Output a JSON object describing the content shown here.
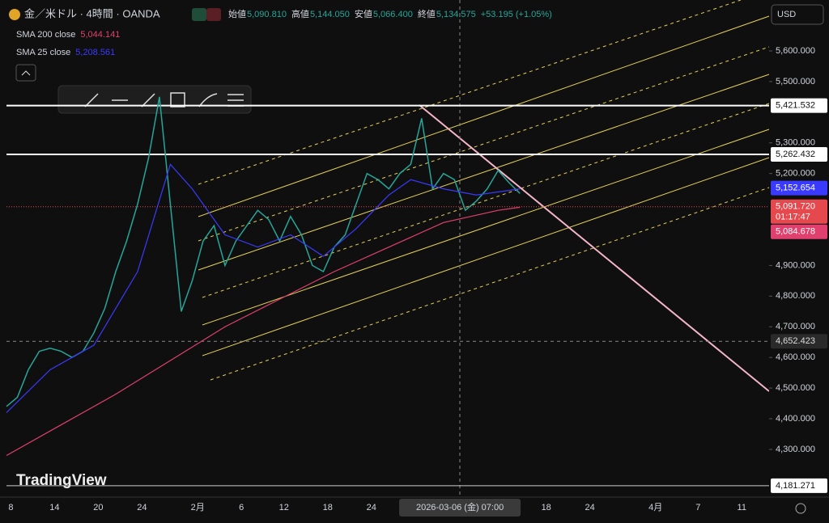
{
  "chart_data": {
    "type": "line",
    "title": "金／米ドル · 4時間 · OANDA",
    "legend": {
      "open_label": "始値",
      "open": "5,090.810",
      "high_label": "高値",
      "high": "5,144.050",
      "low_label": "安値",
      "low": "5,066.400",
      "close_label": "終値",
      "close": "5,134.575",
      "change": "+53.195 (+1.05%)"
    },
    "indicators": [
      {
        "name": "SMA 200 close",
        "value": "5,044.141",
        "color": "#e0406e"
      },
      {
        "name": "SMA 25 close",
        "value": "5,208.561",
        "color": "#3a3aff"
      }
    ],
    "currency": "USD",
    "brand": "TradingView",
    "series": [
      {
        "name": "終値",
        "color": "#26a69a",
        "x": [
          0,
          1,
          2,
          3,
          4,
          5,
          6,
          7,
          8,
          9,
          10,
          11,
          12,
          13,
          14,
          15,
          16,
          17,
          18,
          19,
          20,
          21,
          22,
          23,
          24,
          25,
          26,
          27,
          28,
          29,
          30,
          31,
          32,
          33,
          34,
          35,
          36,
          37,
          38,
          39,
          40,
          41,
          42,
          43,
          44,
          45,
          46,
          47
        ],
        "values": [
          4440,
          4470,
          4560,
          4620,
          4630,
          4620,
          4600,
          4620,
          4680,
          4760,
          4880,
          4980,
          5100,
          5250,
          5450,
          5100,
          4750,
          4850,
          4980,
          5030,
          4900,
          4980,
          5030,
          5080,
          5050,
          4980,
          5060,
          5000,
          4900,
          4880,
          4960,
          5000,
          5100,
          5200,
          5180,
          5150,
          5200,
          5230,
          5380,
          5150,
          5200,
          5180,
          5080,
          5110,
          5150,
          5210,
          5170,
          5135
        ]
      },
      {
        "name": "SMA 25 close",
        "color": "#3a3aff",
        "x": [
          0,
          4,
          8,
          12,
          15,
          17,
          20,
          23,
          26,
          29,
          32,
          35,
          37,
          40,
          43,
          47
        ],
        "values": [
          4420,
          4560,
          4640,
          4880,
          5230,
          5150,
          5000,
          4960,
          5000,
          4930,
          5020,
          5130,
          5180,
          5150,
          5130,
          5150
        ]
      },
      {
        "name": "SMA 200 close",
        "color": "#e0406e",
        "x": [
          0,
          5,
          10,
          15,
          20,
          25,
          30,
          35,
          40,
          45,
          47
        ],
        "values": [
          4280,
          4380,
          4480,
          4590,
          4700,
          4790,
          4880,
          4960,
          5040,
          5080,
          5090
        ]
      }
    ],
    "xlim": [
      0,
      69.8
    ],
    "xticks": [
      {
        "value": 0.4,
        "label": "8"
      },
      {
        "value": 4.4,
        "label": "14"
      },
      {
        "value": 8.4,
        "label": "20"
      },
      {
        "value": 12.4,
        "label": "24"
      },
      {
        "value": 17.5,
        "label": "2月"
      },
      {
        "value": 21.5,
        "label": "6"
      },
      {
        "value": 25.4,
        "label": "12"
      },
      {
        "value": 29.4,
        "label": "18"
      },
      {
        "value": 33.4,
        "label": "24"
      },
      {
        "value": 41.5,
        "label": "2026-03-06 (金)  07:00"
      },
      {
        "value": 49.4,
        "label": "18"
      },
      {
        "value": 53.4,
        "label": "24"
      },
      {
        "value": 59.4,
        "label": "4月"
      },
      {
        "value": 63.3,
        "label": "7"
      },
      {
        "value": 67.3,
        "label": "11"
      }
    ],
    "ylim": [
      4134,
      5758
    ],
    "yticks": [
      {
        "value": 5600,
        "label": "5,600.000"
      },
      {
        "value": 5500,
        "label": "5,500.000"
      },
      {
        "value": 5300,
        "label": "5,300.000"
      },
      {
        "value": 5200,
        "label": "5,200.000"
      },
      {
        "value": 4900,
        "label": "4,900.000"
      },
      {
        "value": 4800,
        "label": "4,800.000"
      },
      {
        "value": 4700,
        "label": "4,700.000"
      },
      {
        "value": 4600,
        "label": "4,600.000"
      },
      {
        "value": 4500,
        "label": "4,500.000"
      },
      {
        "value": 4400,
        "label": "4,400.000"
      },
      {
        "value": 4300,
        "label": "4,300.000"
      }
    ],
    "price_lines": [
      {
        "value": 5421.532,
        "label": "5,421.532",
        "color": "#ffffff"
      },
      {
        "value": 5262.432,
        "label": "5,262.432",
        "color": "#ffffff"
      },
      {
        "value": 4652.423,
        "label": "4,652.423",
        "color": "#888888"
      },
      {
        "value": 4181.271,
        "label": "4,181.271",
        "color": "#cccccc"
      }
    ],
    "price_badges": [
      {
        "value": 5152.654,
        "label": "5,152.654",
        "color": "#3a3aff"
      },
      {
        "value": 5091.72,
        "label": "5,091.720",
        "sub": "01:17:47",
        "color": "#e5484d"
      },
      {
        "value": 5084.678,
        "label": "5,084.678",
        "color": "#e0406e"
      }
    ]
  }
}
